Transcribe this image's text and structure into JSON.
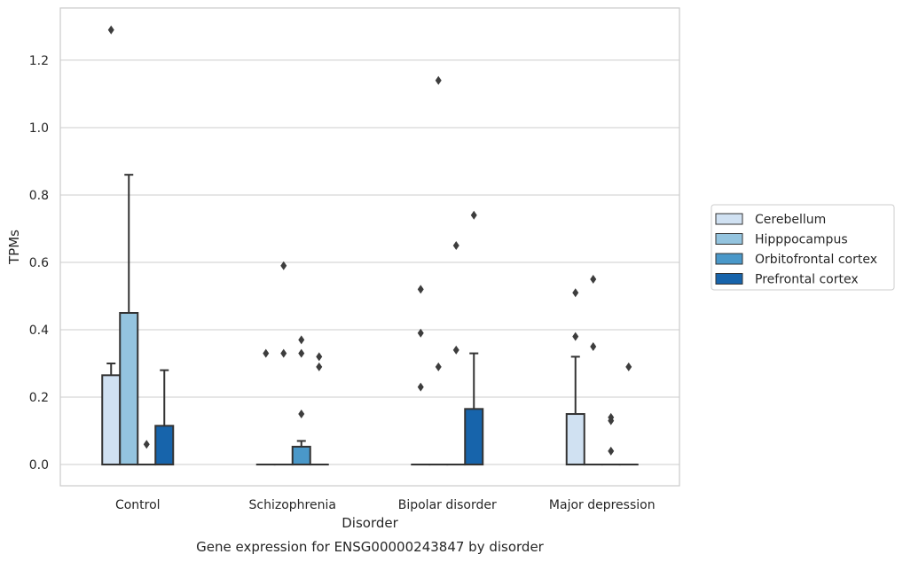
{
  "chart_data": {
    "type": "box",
    "caption": "Gene expression for ENSG00000243847 by disorder",
    "xlabel": "Disorder",
    "ylabel": "TPMs",
    "ylim": [
      -0.063,
      1.355
    ],
    "yticks": [
      0.0,
      0.2,
      0.4,
      0.6,
      0.8,
      1.0,
      1.2
    ],
    "ytick_labels": [
      "0.0",
      "0.2",
      "0.4",
      "0.6",
      "0.8",
      "1.0",
      "1.2"
    ],
    "grid": "horizontal",
    "legend_placement": "center-right",
    "categories": [
      "Control",
      "Schizophrenia",
      "Bipolar disorder",
      "Major depression"
    ],
    "series": [
      {
        "name": "Cerebellum",
        "color": "#d0e1f2",
        "boxes": [
          {
            "q1": 0.0,
            "median": 0.0,
            "q3": 0.265,
            "whisker_low": 0.0,
            "whisker_high": 0.3,
            "outliers": [
              1.29
            ]
          },
          {
            "q1": 0.0,
            "median": 0.0,
            "q3": 0.0,
            "whisker_low": 0.0,
            "whisker_high": 0.0,
            "outliers": [
              0.33
            ]
          },
          {
            "q1": 0.0,
            "median": 0.0,
            "q3": 0.0,
            "whisker_low": 0.0,
            "whisker_high": 0.0,
            "outliers": [
              0.52,
              0.39,
              0.23
            ]
          },
          {
            "q1": 0.0,
            "median": 0.0,
            "q3": 0.15,
            "whisker_low": 0.0,
            "whisker_high": 0.32,
            "outliers": [
              0.51,
              0.38
            ]
          }
        ]
      },
      {
        "name": "Hipppocampus",
        "color": "#94c4df",
        "boxes": [
          {
            "q1": 0.0,
            "median": 0.0,
            "q3": 0.45,
            "whisker_low": 0.0,
            "whisker_high": 0.86,
            "outliers": []
          },
          {
            "q1": 0.0,
            "median": 0.0,
            "q3": 0.0,
            "whisker_low": 0.0,
            "whisker_high": 0.0,
            "outliers": [
              0.59,
              0.33
            ]
          },
          {
            "q1": 0.0,
            "median": 0.0,
            "q3": 0.0,
            "whisker_low": 0.0,
            "whisker_high": 0.0,
            "outliers": [
              1.14,
              0.29
            ]
          },
          {
            "q1": 0.0,
            "median": 0.0,
            "q3": 0.0,
            "whisker_low": 0.0,
            "whisker_high": 0.0,
            "outliers": [
              0.55,
              0.35
            ]
          }
        ]
      },
      {
        "name": "Orbitofrontal cortex",
        "color": "#4a98c9",
        "boxes": [
          {
            "q1": 0.0,
            "median": 0.0,
            "q3": 0.0,
            "whisker_low": 0.0,
            "whisker_high": 0.0,
            "outliers": [
              0.06
            ]
          },
          {
            "q1": 0.0,
            "median": 0.0,
            "q3": 0.053,
            "whisker_low": 0.0,
            "whisker_high": 0.07,
            "outliers": [
              0.37,
              0.33,
              0.15
            ]
          },
          {
            "q1": 0.0,
            "median": 0.0,
            "q3": 0.0,
            "whisker_low": 0.0,
            "whisker_high": 0.0,
            "outliers": [
              0.65,
              0.34
            ]
          },
          {
            "q1": 0.0,
            "median": 0.0,
            "q3": 0.0,
            "whisker_low": 0.0,
            "whisker_high": 0.0,
            "outliers": [
              0.14,
              0.13,
              0.04
            ]
          }
        ]
      },
      {
        "name": "Prefrontal cortex",
        "color": "#1764ab",
        "boxes": [
          {
            "q1": 0.0,
            "median": 0.0,
            "q3": 0.115,
            "whisker_low": 0.0,
            "whisker_high": 0.28,
            "outliers": []
          },
          {
            "q1": 0.0,
            "median": 0.0,
            "q3": 0.0,
            "whisker_low": 0.0,
            "whisker_high": 0.0,
            "outliers": [
              0.32,
              0.29
            ]
          },
          {
            "q1": 0.0,
            "median": 0.0,
            "q3": 0.165,
            "whisker_low": 0.0,
            "whisker_high": 0.33,
            "outliers": [
              0.74
            ]
          },
          {
            "q1": 0.0,
            "median": 0.0,
            "q3": 0.0,
            "whisker_low": 0.0,
            "whisker_high": 0.0,
            "outliers": [
              0.29
            ]
          }
        ]
      }
    ]
  }
}
